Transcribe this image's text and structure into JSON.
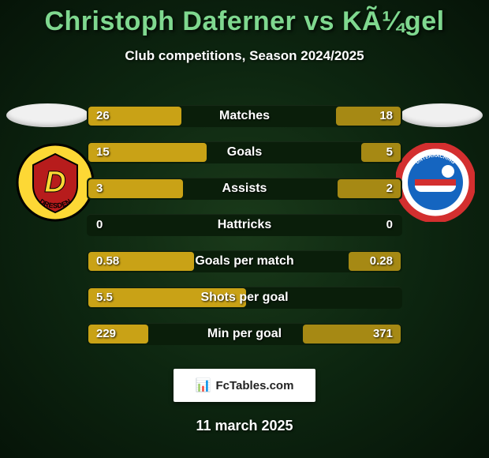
{
  "title": "Christoph Daferner vs KÃ¼gel",
  "subtitle": "Club competitions, Season 2024/2025",
  "date": "11 march 2025",
  "watermark_text": "FcTables.com",
  "colors": {
    "left_bar": "#c9a216",
    "right_bar": "#a68914",
    "row_bg": "#0a1e0a",
    "title_color": "#7fd88f"
  },
  "badges": {
    "left": {
      "name": "Dynamo Dresden",
      "bg": "#fdd835",
      "accent": "#b71c1c",
      "text": "DRESDEN",
      "letter": "D"
    },
    "right": {
      "name": "SpVgg Unterhaching",
      "bg": "#ffffff",
      "ring": "#d32f2f",
      "accent": "#1565c0",
      "text": "UNTERHACHING"
    }
  },
  "stats": [
    {
      "label": "Matches",
      "left_val": "26",
      "right_val": "18",
      "left_pct": 59,
      "right_pct": 41
    },
    {
      "label": "Goals",
      "left_val": "15",
      "right_val": "5",
      "left_pct": 75,
      "right_pct": 25
    },
    {
      "label": "Assists",
      "left_val": "3",
      "right_val": "2",
      "left_pct": 60,
      "right_pct": 40
    },
    {
      "label": "Hattricks",
      "left_val": "0",
      "right_val": "0",
      "left_pct": 0,
      "right_pct": 0
    },
    {
      "label": "Goals per match",
      "left_val": "0.58",
      "right_val": "0.28",
      "left_pct": 67,
      "right_pct": 33
    },
    {
      "label": "Shots per goal",
      "left_val": "5.5",
      "right_val": "",
      "left_pct": 100,
      "right_pct": 0
    },
    {
      "label": "Min per goal",
      "left_val": "229",
      "right_val": "371",
      "left_pct": 38,
      "right_pct": 62
    }
  ]
}
